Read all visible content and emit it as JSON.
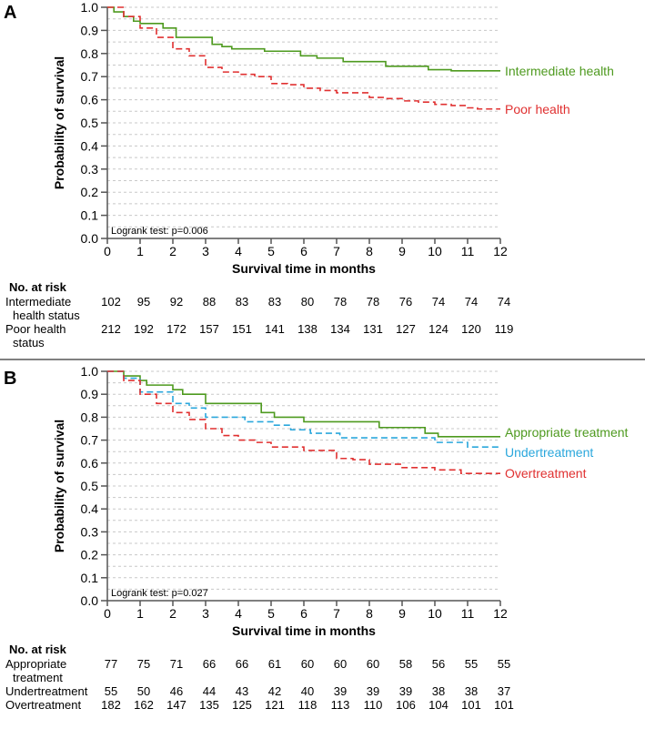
{
  "chart_data": [
    {
      "type": "line",
      "panel_label": "A",
      "xlabel": "Survival time in months",
      "ylabel": "Probability of survival",
      "xlim": [
        0,
        12
      ],
      "ylim": [
        0,
        1
      ],
      "xticks": [
        "0",
        "1",
        "2",
        "3",
        "4",
        "5",
        "6",
        "7",
        "8",
        "9",
        "10",
        "11",
        "12"
      ],
      "yticks": [
        "0.0",
        "0.1",
        "0.2",
        "0.3",
        "0.4",
        "0.5",
        "0.6",
        "0.7",
        "0.8",
        "0.9",
        "1.0"
      ],
      "grid": true,
      "annotation": "Logrank test: p=0.006",
      "series": [
        {
          "name": "Intermediate health",
          "color": "#4e9a1f",
          "dash": false,
          "points": [
            [
              0,
              1
            ],
            [
              0.2,
              0.98
            ],
            [
              0.5,
              0.96
            ],
            [
              0.8,
              0.94
            ],
            [
              1.0,
              0.93
            ],
            [
              1.7,
              0.91
            ],
            [
              2.1,
              0.87
            ],
            [
              3.0,
              0.87
            ],
            [
              3.2,
              0.84
            ],
            [
              3.5,
              0.83
            ],
            [
              3.8,
              0.82
            ],
            [
              4.8,
              0.81
            ],
            [
              5.9,
              0.79
            ],
            [
              6.4,
              0.78
            ],
            [
              7.2,
              0.765
            ],
            [
              8.5,
              0.745
            ],
            [
              9.8,
              0.73
            ],
            [
              10.5,
              0.725
            ],
            [
              12,
              0.725
            ]
          ]
        },
        {
          "name": "Poor health",
          "color": "#e03030",
          "dash": true,
          "points": [
            [
              0,
              1
            ],
            [
              0.5,
              0.96
            ],
            [
              1,
              0.91
            ],
            [
              1.5,
              0.87
            ],
            [
              2,
              0.82
            ],
            [
              2.5,
              0.79
            ],
            [
              3,
              0.74
            ],
            [
              3.5,
              0.72
            ],
            [
              4,
              0.71
            ],
            [
              4.5,
              0.7
            ],
            [
              5,
              0.67
            ],
            [
              5.5,
              0.665
            ],
            [
              6,
              0.65
            ],
            [
              6.5,
              0.64
            ],
            [
              7,
              0.63
            ],
            [
              8,
              0.61
            ],
            [
              8.5,
              0.605
            ],
            [
              9,
              0.595
            ],
            [
              9.5,
              0.59
            ],
            [
              10,
              0.58
            ],
            [
              10.5,
              0.575
            ],
            [
              11,
              0.565
            ],
            [
              11.3,
              0.56
            ],
            [
              12,
              0.56
            ]
          ]
        }
      ],
      "risk_table": {
        "title": "No. at risk",
        "rows": [
          {
            "label": [
              "Intermediate",
              "health status"
            ],
            "values": [
              102,
              95,
              92,
              88,
              83,
              83,
              80,
              78,
              78,
              76,
              74,
              74,
              74
            ]
          },
          {
            "label": [
              "Poor health",
              "status"
            ],
            "values": [
              212,
              192,
              172,
              157,
              151,
              141,
              138,
              134,
              131,
              127,
              124,
              120,
              119
            ]
          }
        ]
      }
    },
    {
      "type": "line",
      "panel_label": "B",
      "xlabel": "Survival time in months",
      "ylabel": "Probability of survival",
      "xlim": [
        0,
        12
      ],
      "ylim": [
        0,
        1
      ],
      "xticks": [
        "0",
        "1",
        "2",
        "3",
        "4",
        "5",
        "6",
        "7",
        "8",
        "9",
        "10",
        "11",
        "12"
      ],
      "yticks": [
        "0.0",
        "0.1",
        "0.2",
        "0.3",
        "0.4",
        "0.5",
        "0.6",
        "0.7",
        "0.8",
        "0.9",
        "1.0"
      ],
      "grid": true,
      "annotation": "Logrank test: p=0.027",
      "series": [
        {
          "name": "Appropriate treatment",
          "color": "#4e9a1f",
          "dash": false,
          "points": [
            [
              0,
              1
            ],
            [
              0.5,
              0.98
            ],
            [
              1,
              0.96
            ],
            [
              1.2,
              0.94
            ],
            [
              2,
              0.92
            ],
            [
              2.3,
              0.9
            ],
            [
              3,
              0.86
            ],
            [
              4.7,
              0.82
            ],
            [
              5.1,
              0.8
            ],
            [
              6,
              0.78
            ],
            [
              8.3,
              0.755
            ],
            [
              9.7,
              0.73
            ],
            [
              10.1,
              0.715
            ],
            [
              12,
              0.715
            ]
          ]
        },
        {
          "name": "Undertreatment",
          "color": "#2aa7dc",
          "dash": true,
          "points": [
            [
              0,
              1
            ],
            [
              0.5,
              0.97
            ],
            [
              1,
              0.91
            ],
            [
              2,
              0.86
            ],
            [
              2.5,
              0.84
            ],
            [
              3,
              0.8
            ],
            [
              4.2,
              0.78
            ],
            [
              5.1,
              0.765
            ],
            [
              5.6,
              0.745
            ],
            [
              6.2,
              0.73
            ],
            [
              7.1,
              0.71
            ],
            [
              10,
              0.69
            ],
            [
              11,
              0.67
            ],
            [
              12,
              0.67
            ]
          ]
        },
        {
          "name": "Overtreatment",
          "color": "#e03030",
          "dash": true,
          "points": [
            [
              0,
              1
            ],
            [
              0.5,
              0.96
            ],
            [
              1,
              0.9
            ],
            [
              1.5,
              0.86
            ],
            [
              2,
              0.82
            ],
            [
              2.5,
              0.79
            ],
            [
              3,
              0.75
            ],
            [
              3.5,
              0.72
            ],
            [
              4,
              0.7
            ],
            [
              4.5,
              0.69
            ],
            [
              5,
              0.67
            ],
            [
              6,
              0.655
            ],
            [
              7,
              0.62
            ],
            [
              7.5,
              0.615
            ],
            [
              8,
              0.595
            ],
            [
              9,
              0.58
            ],
            [
              10,
              0.57
            ],
            [
              10.8,
              0.555
            ],
            [
              12,
              0.555
            ]
          ]
        }
      ],
      "risk_table": {
        "title": "No. at risk",
        "rows": [
          {
            "label": [
              "Appropriate",
              "treatment"
            ],
            "values": [
              77,
              75,
              71,
              66,
              66,
              61,
              60,
              60,
              60,
              58,
              56,
              55,
              55
            ]
          },
          {
            "label": [
              "Undertreatment"
            ],
            "values": [
              55,
              50,
              46,
              44,
              43,
              42,
              40,
              39,
              39,
              39,
              38,
              38,
              37
            ]
          },
          {
            "label": [
              "Overtreatment"
            ],
            "values": [
              182,
              162,
              147,
              135,
              125,
              121,
              118,
              113,
              110,
              106,
              104,
              101,
              101
            ]
          }
        ]
      }
    }
  ]
}
